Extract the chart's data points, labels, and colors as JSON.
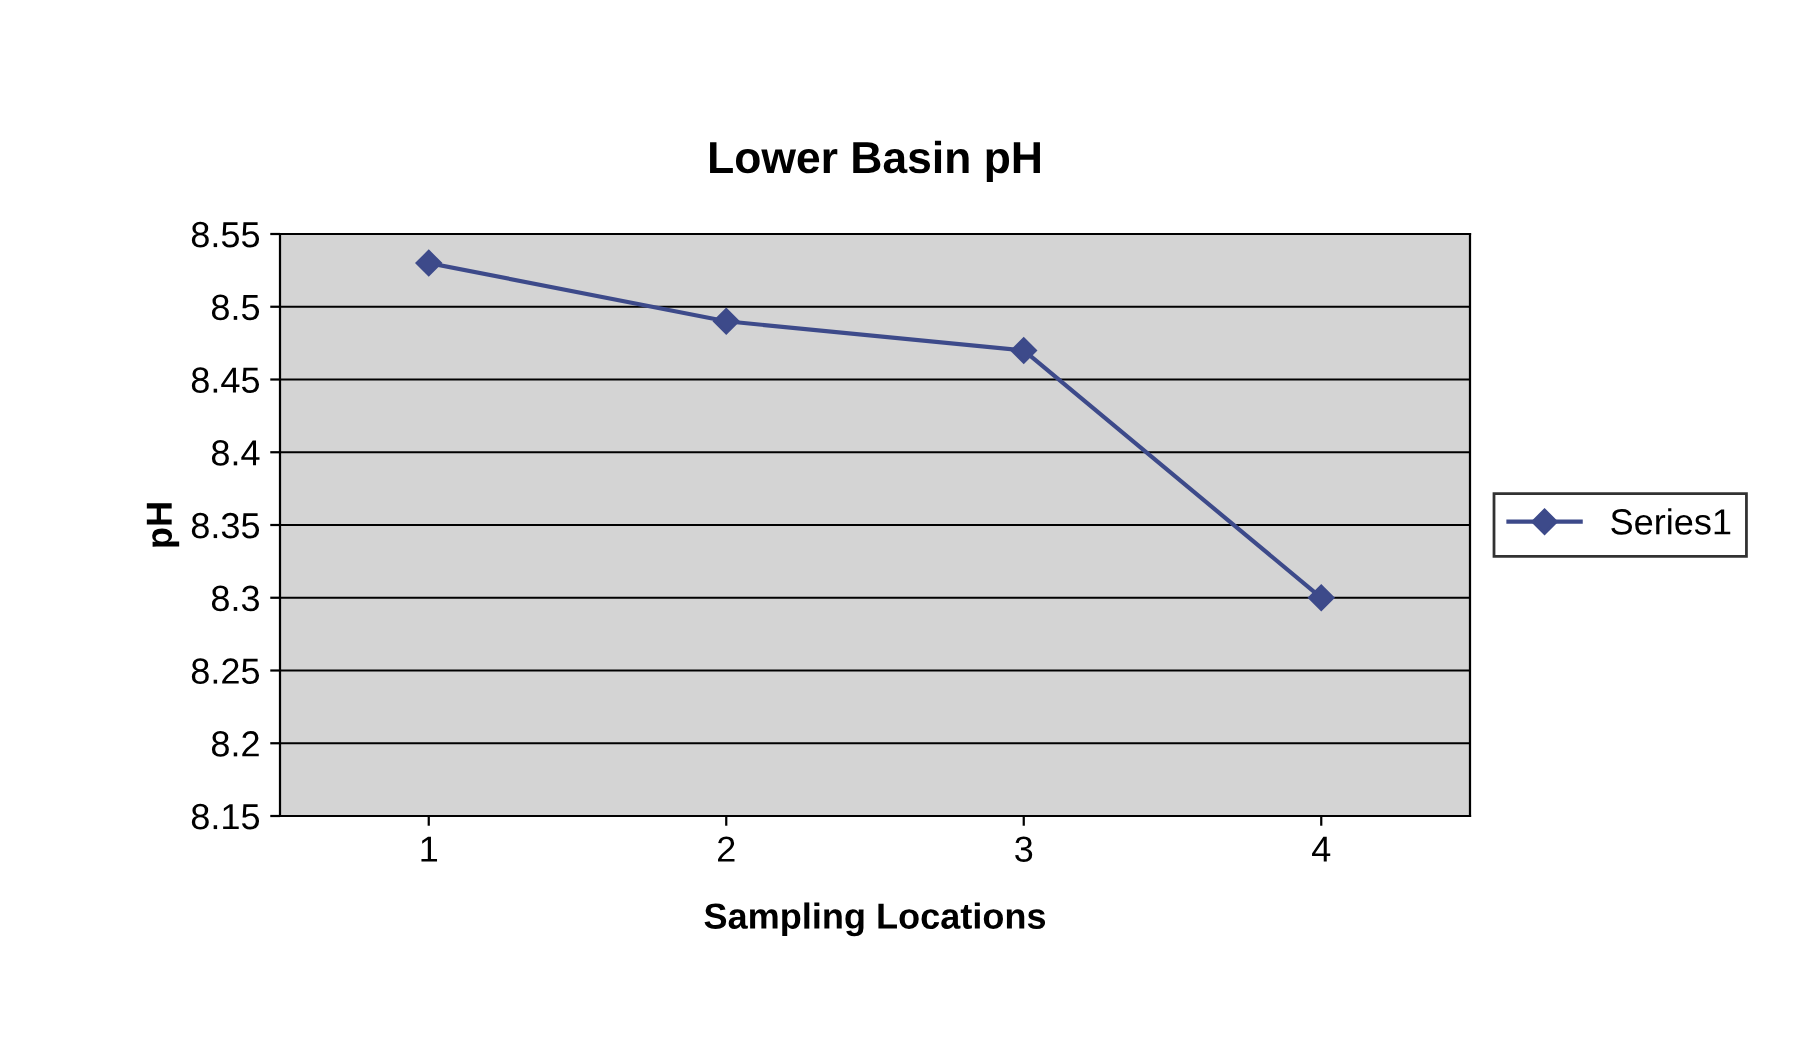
{
  "chart_data": {
    "type": "line",
    "title": "Lower Basin pH",
    "xlabel": "Sampling Locations",
    "ylabel": "pH",
    "categories": [
      "1",
      "2",
      "3",
      "4"
    ],
    "series": [
      {
        "name": "Series1",
        "color": "#3d4a8a",
        "values": [
          8.53,
          8.49,
          8.47,
          8.3
        ]
      }
    ],
    "ylim": [
      8.15,
      8.55
    ],
    "yticks": [
      8.15,
      8.2,
      8.25,
      8.3,
      8.35,
      8.4,
      8.45,
      8.5,
      8.55
    ],
    "grid": "y",
    "legend": "right",
    "marker": "diamond",
    "line_style": "solid"
  }
}
